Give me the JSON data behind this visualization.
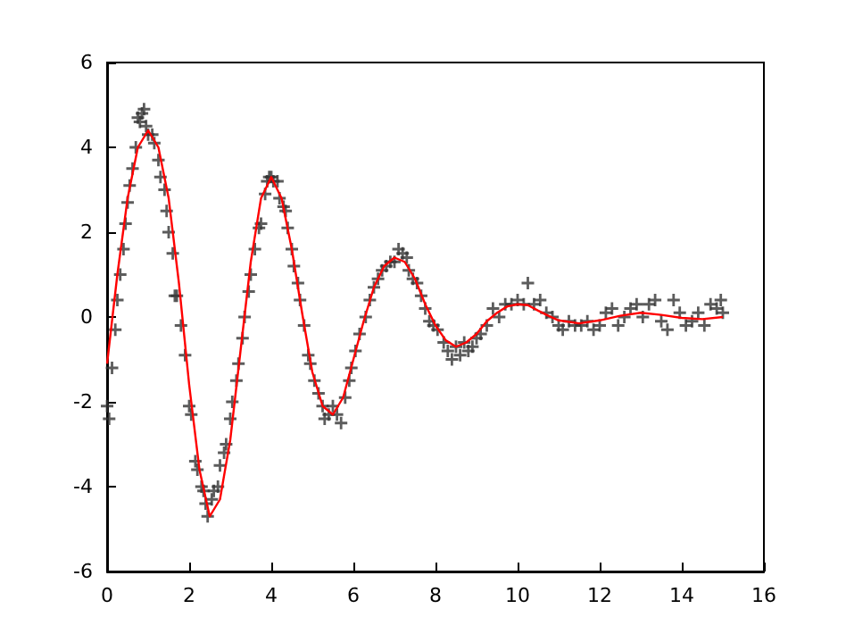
{
  "chart_data": {
    "type": "scatter",
    "xlim": [
      0,
      16
    ],
    "xticks": [
      0,
      2,
      4,
      6,
      8,
      10,
      12,
      14,
      16
    ],
    "ylim": [
      -6,
      6
    ],
    "yticks": [
      -6,
      -4,
      -2,
      0,
      2,
      4,
      6
    ],
    "grid": false,
    "series": [
      {
        "color": "#333333",
        "marker": "cross",
        "x": [
          0.0,
          0.05,
          0.12,
          0.2,
          0.25,
          0.32,
          0.4,
          0.45,
          0.5,
          0.55,
          0.62,
          0.7,
          0.75,
          0.8,
          0.85,
          0.9,
          0.95,
          1.0,
          1.1,
          1.15,
          1.25,
          1.3,
          1.4,
          1.45,
          1.5,
          1.6,
          1.65,
          1.7,
          1.8,
          1.9,
          2.0,
          2.05,
          2.15,
          2.2,
          2.3,
          2.35,
          2.4,
          2.45,
          2.55,
          2.6,
          2.7,
          2.75,
          2.85,
          2.9,
          3.0,
          3.05,
          3.15,
          3.2,
          3.3,
          3.35,
          3.45,
          3.5,
          3.6,
          3.7,
          3.75,
          3.85,
          3.9,
          3.95,
          4.0,
          4.05,
          4.15,
          4.2,
          4.3,
          4.35,
          4.4,
          4.5,
          4.55,
          4.65,
          4.7,
          4.8,
          4.9,
          4.95,
          5.05,
          5.15,
          5.25,
          5.3,
          5.4,
          5.5,
          5.6,
          5.7,
          5.8,
          5.9,
          5.95,
          6.05,
          6.15,
          6.3,
          6.4,
          6.5,
          6.6,
          6.7,
          6.8,
          6.9,
          7.0,
          7.1,
          7.2,
          7.3,
          7.35,
          7.45,
          7.55,
          7.65,
          7.75,
          7.85,
          7.95,
          8.05,
          8.2,
          8.3,
          8.4,
          8.5,
          8.6,
          8.7,
          8.8,
          8.9,
          9.0,
          9.1,
          9.25,
          9.4,
          9.55,
          9.7,
          9.85,
          10.0,
          10.15,
          10.25,
          10.4,
          10.55,
          10.7,
          10.85,
          11.0,
          11.1,
          11.25,
          11.4,
          11.55,
          11.7,
          11.85,
          12.0,
          12.15,
          12.3,
          12.45,
          12.6,
          12.75,
          12.9,
          13.05,
          13.2,
          13.35,
          13.5,
          13.65,
          13.8,
          13.95,
          14.1,
          14.25,
          14.4,
          14.55,
          14.7,
          14.85,
          14.95,
          15.0
        ],
        "values": [
          -2.1,
          -2.4,
          -1.2,
          -0.3,
          0.4,
          1.0,
          1.6,
          2.2,
          2.7,
          3.1,
          3.5,
          4.0,
          4.7,
          4.6,
          4.8,
          4.9,
          4.5,
          4.3,
          4.3,
          4.1,
          3.7,
          3.3,
          3.0,
          2.5,
          2.0,
          1.5,
          0.5,
          0.5,
          -0.2,
          -0.9,
          -2.1,
          -2.3,
          -3.4,
          -3.6,
          -4.0,
          -4.1,
          -4.4,
          -4.7,
          -4.3,
          -4.1,
          -4.0,
          -3.5,
          -3.2,
          -3.0,
          -2.4,
          -2.0,
          -1.5,
          -1.1,
          -0.5,
          0.0,
          0.6,
          1.0,
          1.6,
          2.1,
          2.2,
          2.9,
          3.2,
          3.3,
          3.3,
          3.2,
          3.2,
          2.8,
          2.6,
          2.5,
          2.1,
          1.6,
          1.2,
          0.8,
          0.4,
          -0.2,
          -0.9,
          -1.1,
          -1.5,
          -1.8,
          -2.1,
          -2.4,
          -2.3,
          -2.1,
          -2.3,
          -2.5,
          -1.9,
          -1.5,
          -1.2,
          -0.8,
          -0.4,
          0.0,
          0.4,
          0.7,
          0.9,
          1.1,
          1.2,
          1.3,
          1.3,
          1.6,
          1.5,
          1.4,
          1.1,
          0.9,
          0.8,
          0.5,
          0.2,
          -0.1,
          -0.2,
          -0.3,
          -0.6,
          -0.8,
          -1.0,
          -0.7,
          -0.9,
          -0.6,
          -0.8,
          -0.7,
          -0.5,
          -0.4,
          -0.2,
          0.2,
          0.0,
          0.3,
          0.3,
          0.4,
          0.3,
          0.8,
          0.3,
          0.4,
          0.1,
          0.0,
          -0.2,
          -0.3,
          -0.1,
          -0.2,
          -0.2,
          -0.1,
          -0.3,
          -0.2,
          0.1,
          0.2,
          -0.2,
          0.0,
          0.2,
          0.3,
          0.0,
          0.3,
          0.4,
          -0.1,
          -0.3,
          0.4,
          0.1,
          -0.2,
          -0.1,
          0.1,
          -0.2,
          0.3,
          0.2,
          0.4,
          0.1
        ]
      },
      {
        "type": "line",
        "color": "#ff0000",
        "marker": "none",
        "line_style": "solid",
        "x": [
          0,
          0.25,
          0.5,
          0.75,
          1.0,
          1.25,
          1.5,
          1.75,
          2.0,
          2.25,
          2.5,
          2.75,
          3.0,
          3.25,
          3.5,
          3.75,
          4.0,
          4.25,
          4.5,
          4.75,
          5.0,
          5.25,
          5.5,
          5.75,
          6.0,
          6.25,
          6.5,
          6.75,
          7.0,
          7.25,
          7.5,
          7.75,
          8.0,
          8.25,
          8.5,
          8.75,
          9.0,
          9.25,
          9.5,
          9.75,
          10.0,
          10.25,
          10.5,
          10.75,
          11.0,
          11.5,
          12.0,
          12.5,
          13.0,
          13.5,
          14.0,
          14.5,
          15.0
        ],
        "values": [
          -1.1,
          1.0,
          2.8,
          4.0,
          4.4,
          4.0,
          2.8,
          0.8,
          -1.6,
          -3.6,
          -4.7,
          -4.3,
          -2.9,
          -0.8,
          1.3,
          2.8,
          3.3,
          2.8,
          1.6,
          0.1,
          -1.3,
          -2.1,
          -2.3,
          -1.9,
          -1.0,
          -0.1,
          0.7,
          1.2,
          1.4,
          1.3,
          0.9,
          0.3,
          -0.2,
          -0.55,
          -0.7,
          -0.6,
          -0.4,
          -0.1,
          0.1,
          0.25,
          0.3,
          0.28,
          0.15,
          0.03,
          -0.08,
          -0.15,
          -0.08,
          0.03,
          0.1,
          0.05,
          -0.02,
          -0.05,
          0.0
        ]
      }
    ]
  }
}
